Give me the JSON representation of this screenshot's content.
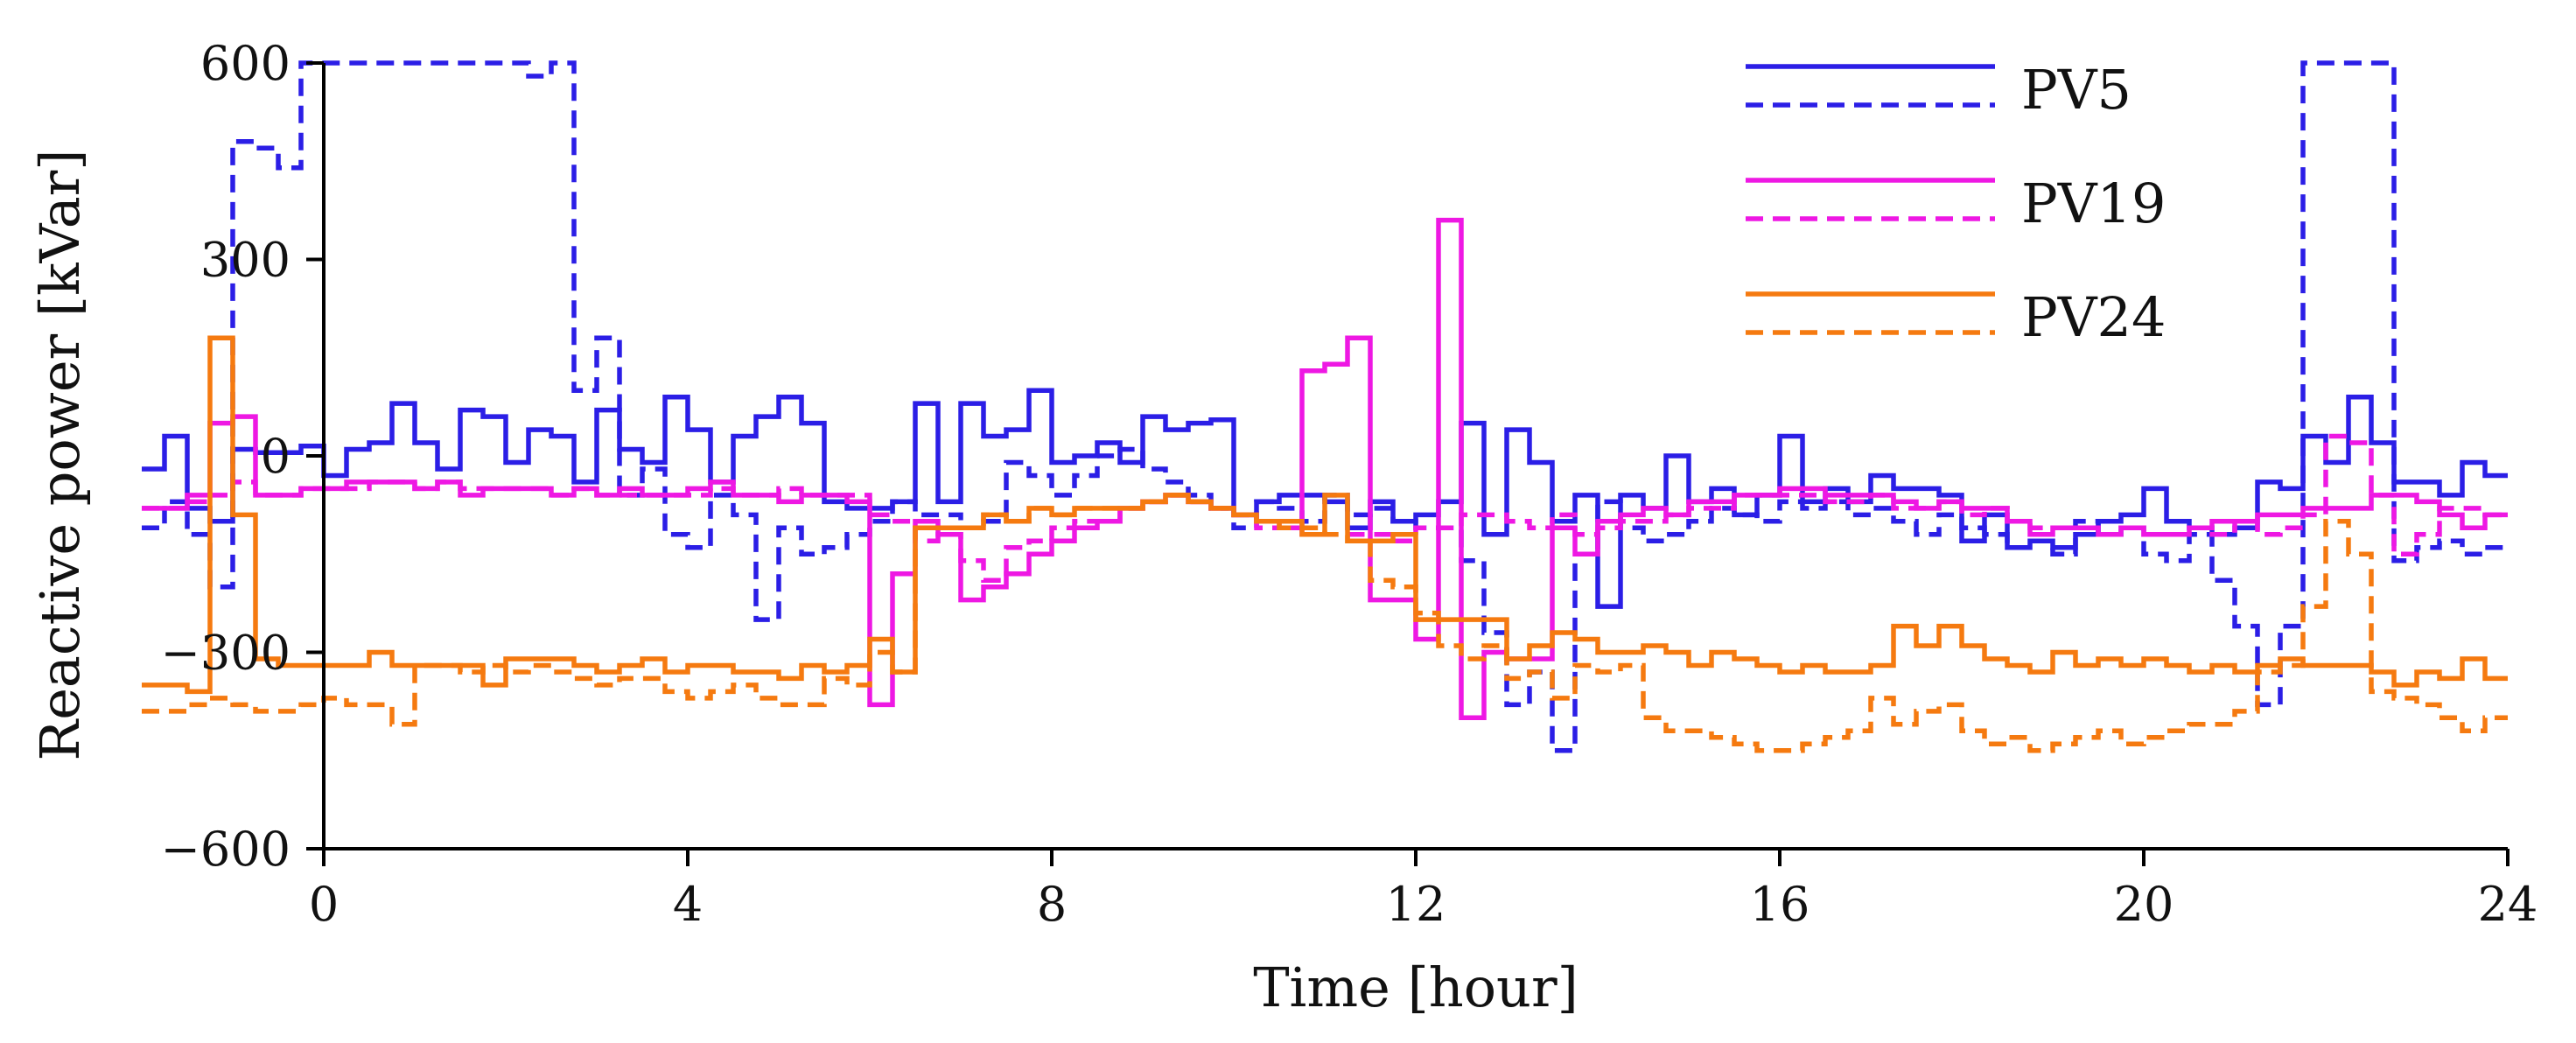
{
  "chart_data": {
    "type": "line",
    "xlabel": "Time [hour]",
    "ylabel": "Reactive power [kVar]",
    "xlim": [
      0,
      24
    ],
    "ylim": [
      -600,
      600
    ],
    "xticks": [
      0,
      4,
      8,
      12,
      16,
      20,
      24
    ],
    "yticks": [
      -600,
      -300,
      0,
      300,
      600
    ],
    "ytick_labels": [
      "−600",
      "−300",
      "0",
      "300",
      "600"
    ],
    "grid": false,
    "legend_position": "top-right",
    "step_hours": 0.25,
    "colors": {
      "PV5": "#2b1ee6",
      "PV19": "#ee18e3",
      "PV24": "#f57a10"
    },
    "series": [
      {
        "name": "PV5",
        "style": "solid",
        "legend_label": "PV5",
        "values": [
          -20,
          30,
          -80,
          -100,
          10,
          5,
          5,
          15,
          -30,
          10,
          20,
          80,
          20,
          -20,
          70,
          60,
          -10,
          40,
          30,
          -40,
          70,
          10,
          -10,
          90,
          40,
          -40,
          30,
          60,
          90,
          50,
          -70,
          -80,
          -80,
          -70,
          80,
          -70,
          80,
          30,
          40,
          100,
          -10,
          0,
          20,
          -10,
          60,
          40,
          50,
          55,
          -90,
          -70,
          -60,
          -60,
          -70,
          -110,
          -70,
          -100,
          -90,
          -70,
          50,
          -120,
          40,
          -10,
          -100,
          -60,
          -230,
          -60,
          -80,
          0,
          -70,
          -50,
          -90,
          -60,
          30,
          -70,
          -50,
          -70,
          -30,
          -50,
          -50,
          -60,
          -130,
          -90,
          -140,
          -130,
          -140,
          -120,
          -100,
          -90,
          -50,
          -100,
          -110,
          -120,
          -110,
          -40,
          -50,
          30,
          -10,
          90,
          20,
          -40,
          -40,
          -60,
          -10,
          -30
        ]
      },
      {
        "name": "PV5",
        "style": "dashed",
        "legend_label": "",
        "values": [
          -110,
          -70,
          -120,
          -200,
          480,
          470,
          440,
          600,
          600,
          600,
          600,
          600,
          600,
          600,
          600,
          600,
          600,
          580,
          600,
          100,
          180,
          -60,
          -20,
          -120,
          -140,
          -60,
          -90,
          -250,
          -110,
          -150,
          -140,
          -120,
          -100,
          -70,
          -90,
          -90,
          -110,
          -100,
          -10,
          -30,
          -60,
          -30,
          0,
          10,
          -20,
          -40,
          -60,
          -80,
          -110,
          -70,
          -80,
          -100,
          -60,
          -90,
          -80,
          -100,
          -110,
          -110,
          -160,
          -270,
          -380,
          -330,
          -450,
          -150,
          -70,
          -110,
          -130,
          -120,
          -100,
          -80,
          -90,
          -100,
          -70,
          -80,
          -70,
          -90,
          -80,
          -100,
          -120,
          -90,
          -110,
          -120,
          -140,
          -130,
          -150,
          -100,
          -120,
          -110,
          -150,
          -160,
          -120,
          -190,
          -260,
          -380,
          -260,
          600,
          600,
          600,
          600,
          -160,
          -140,
          -130,
          -150,
          -140
        ]
      },
      {
        "name": "PV19",
        "style": "solid",
        "legend_label": "PV19",
        "values": [
          -80,
          -80,
          -60,
          50,
          60,
          -60,
          -60,
          -50,
          -50,
          -40,
          -40,
          -40,
          -50,
          -40,
          -60,
          -50,
          -50,
          -50,
          -60,
          -50,
          -60,
          -50,
          -60,
          -60,
          -50,
          -40,
          -60,
          -60,
          -70,
          -60,
          -60,
          -70,
          -380,
          -180,
          -100,
          -120,
          -220,
          -200,
          -180,
          -150,
          -130,
          -110,
          -100,
          -80,
          -70,
          -60,
          -70,
          -80,
          -90,
          -100,
          -110,
          130,
          140,
          180,
          -220,
          -220,
          -280,
          360,
          -400,
          -300,
          -310,
          -310,
          -110,
          -150,
          -100,
          -90,
          -80,
          -90,
          -70,
          -70,
          -60,
          -60,
          -50,
          -50,
          -60,
          -60,
          -60,
          -70,
          -80,
          -70,
          -80,
          -80,
          -100,
          -120,
          -110,
          -110,
          -120,
          -110,
          -120,
          -120,
          -110,
          -100,
          -100,
          -90,
          -90,
          -80,
          -80,
          -80,
          -60,
          -60,
          -70,
          -90,
          -110,
          -90
        ]
      },
      {
        "name": "PV19",
        "style": "dashed",
        "legend_label": "",
        "values": [
          -80,
          -80,
          -70,
          -60,
          -40,
          -60,
          -60,
          -50,
          -50,
          -50,
          -40,
          -40,
          -50,
          -40,
          -50,
          -50,
          -50,
          -50,
          -60,
          -50,
          -60,
          -60,
          -60,
          -60,
          -60,
          -50,
          -60,
          -60,
          -50,
          -60,
          -60,
          -60,
          -90,
          -100,
          -130,
          -120,
          -160,
          -190,
          -140,
          -130,
          -110,
          -100,
          -100,
          -80,
          -70,
          -60,
          -70,
          -80,
          -90,
          -110,
          -110,
          -120,
          -120,
          -120,
          -120,
          -130,
          -110,
          -110,
          -90,
          -90,
          -100,
          -110,
          -90,
          -120,
          -110,
          -100,
          -100,
          -90,
          -80,
          -80,
          -60,
          -60,
          -60,
          -60,
          -70,
          -70,
          -60,
          -80,
          -80,
          -70,
          -90,
          -80,
          -100,
          -110,
          -110,
          -110,
          -120,
          -110,
          -120,
          -120,
          -110,
          -120,
          -100,
          -120,
          -110,
          -90,
          30,
          20,
          -60,
          -150,
          -120,
          -80,
          -80,
          -90
        ]
      },
      {
        "name": "PV24",
        "style": "solid",
        "legend_label": "PV24",
        "values": [
          -350,
          -350,
          -360,
          180,
          -90,
          -310,
          -320,
          -320,
          -320,
          -320,
          -300,
          -320,
          -320,
          -320,
          -320,
          -350,
          -310,
          -310,
          -310,
          -320,
          -330,
          -320,
          -310,
          -330,
          -320,
          -320,
          -330,
          -330,
          -340,
          -320,
          -330,
          -320,
          -280,
          -330,
          -110,
          -110,
          -110,
          -90,
          -100,
          -80,
          -90,
          -80,
          -80,
          -80,
          -70,
          -60,
          -70,
          -80,
          -90,
          -100,
          -100,
          -120,
          -60,
          -130,
          -130,
          -120,
          -250,
          -250,
          -250,
          -250,
          -310,
          -290,
          -270,
          -280,
          -300,
          -300,
          -290,
          -300,
          -320,
          -300,
          -310,
          -320,
          -330,
          -320,
          -330,
          -330,
          -320,
          -260,
          -290,
          -260,
          -290,
          -310,
          -320,
          -330,
          -300,
          -320,
          -310,
          -320,
          -310,
          -320,
          -330,
          -320,
          -330,
          -320,
          -310,
          -320,
          -320,
          -320,
          -330,
          -350,
          -330,
          -340,
          -310,
          -340
        ]
      },
      {
        "name": "PV24",
        "style": "dashed",
        "legend_label": "",
        "values": [
          -390,
          -390,
          -380,
          -370,
          -380,
          -390,
          -390,
          -380,
          -370,
          -380,
          -380,
          -410,
          -320,
          -320,
          -330,
          -320,
          -330,
          -320,
          -330,
          -340,
          -350,
          -340,
          -340,
          -360,
          -370,
          -360,
          -350,
          -370,
          -380,
          -380,
          -340,
          -350,
          -300,
          -330,
          -110,
          -110,
          -110,
          -90,
          -100,
          -80,
          -90,
          -80,
          -80,
          -80,
          -70,
          -60,
          -70,
          -80,
          -90,
          -100,
          -110,
          -110,
          -120,
          -130,
          -190,
          -200,
          -240,
          -290,
          -310,
          -290,
          -340,
          -330,
          -370,
          -320,
          -330,
          -320,
          -400,
          -420,
          -420,
          -430,
          -440,
          -450,
          -450,
          -440,
          -430,
          -420,
          -370,
          -410,
          -390,
          -380,
          -420,
          -440,
          -430,
          -450,
          -440,
          -430,
          -420,
          -440,
          -430,
          -420,
          -410,
          -410,
          -390,
          -330,
          -320,
          -230,
          -100,
          -150,
          -360,
          -370,
          -380,
          -400,
          -420,
          -400
        ]
      }
    ]
  }
}
